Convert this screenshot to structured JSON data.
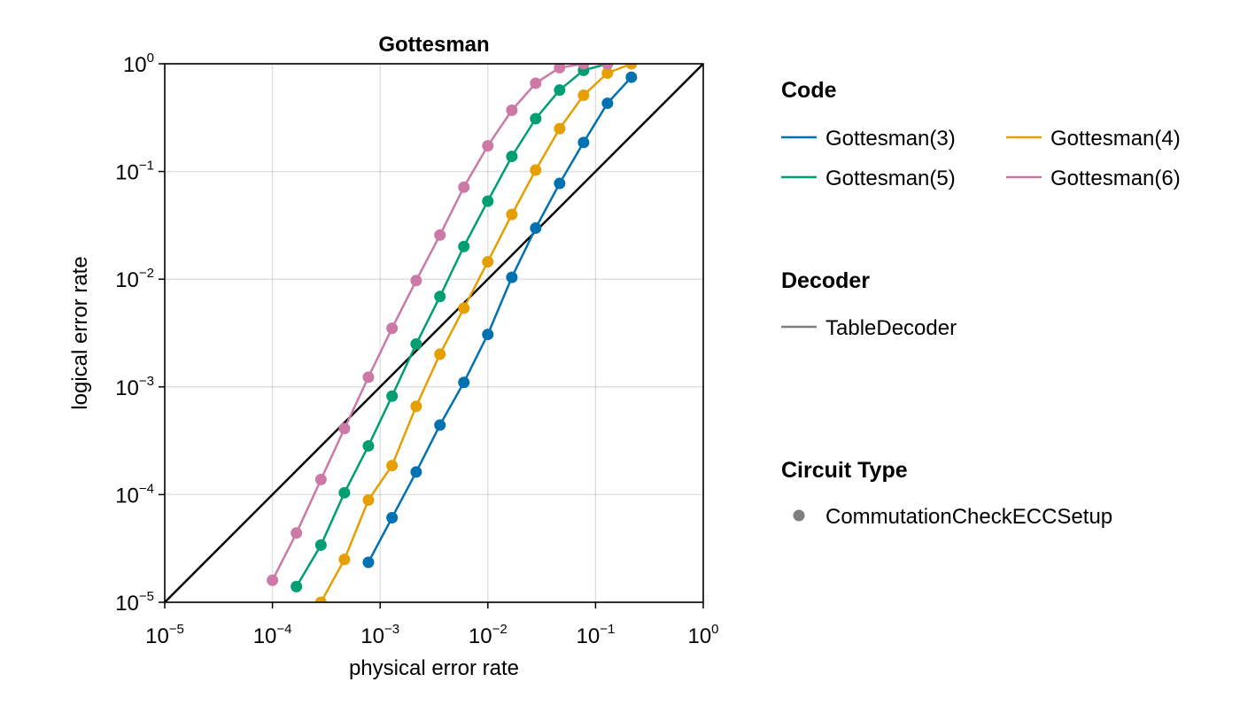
{
  "chart_data": {
    "type": "line",
    "title": "Gottesman",
    "xlabel": "physical error rate",
    "ylabel": "logical error rate",
    "x_scale": "log10",
    "y_scale": "log10",
    "xlim": [
      1e-05,
      1
    ],
    "ylim": [
      1e-05,
      1
    ],
    "grid": true,
    "x_ticks": [
      {
        "base": "10",
        "exp": "−5"
      },
      {
        "base": "10",
        "exp": "−4"
      },
      {
        "base": "10",
        "exp": "−3"
      },
      {
        "base": "10",
        "exp": "−2"
      },
      {
        "base": "10",
        "exp": "−1"
      },
      {
        "base": "10",
        "exp": "0"
      }
    ],
    "y_ticks": [
      {
        "base": "10",
        "exp": "−5"
      },
      {
        "base": "10",
        "exp": "−4"
      },
      {
        "base": "10",
        "exp": "−3"
      },
      {
        "base": "10",
        "exp": "−2"
      },
      {
        "base": "10",
        "exp": "−1"
      },
      {
        "base": "10",
        "exp": "0"
      }
    ],
    "reference_line": {
      "from": [
        1e-05,
        1e-05
      ],
      "to": [
        1,
        1
      ],
      "color": "#000000"
    },
    "series": [
      {
        "name": "Gottesman(3)",
        "color": "#0072b2",
        "x": [
          0.000778,
          0.00129,
          0.00216,
          0.00359,
          0.00599,
          0.00999,
          0.0167,
          0.0278,
          0.0464,
          0.0774,
          0.129,
          0.215
        ],
        "y": [
          2.35e-05,
          6.1e-05,
          0.000162,
          0.000442,
          0.0011,
          0.00307,
          0.0104,
          0.0298,
          0.0775,
          0.186,
          0.43,
          0.75
        ]
      },
      {
        "name": "Gottesman(4)",
        "color": "#e69f00",
        "x": [
          0.000282,
          0.000466,
          0.000778,
          0.00129,
          0.00216,
          0.00359,
          0.00599,
          0.00999,
          0.0167,
          0.0278,
          0.0464,
          0.0774,
          0.129,
          0.215
        ],
        "y": [
          1e-05,
          2.5e-05,
          8.9e-05,
          0.000186,
          0.00066,
          0.00201,
          0.00538,
          0.0145,
          0.0399,
          0.103,
          0.25,
          0.51,
          0.82,
          1.0
        ]
      },
      {
        "name": "Gottesman(5)",
        "color": "#009e73",
        "x": [
          0.000167,
          0.000282,
          0.000466,
          0.000778,
          0.00129,
          0.00216,
          0.00359,
          0.00599,
          0.00999,
          0.0167,
          0.0278,
          0.0464,
          0.0774,
          0.129
        ],
        "y": [
          1.4e-05,
          3.4e-05,
          0.000104,
          0.000283,
          0.00082,
          0.0025,
          0.0069,
          0.0201,
          0.053,
          0.138,
          0.309,
          0.57,
          0.87,
          1.0
        ]
      },
      {
        "name": "Gottesman(6)",
        "color": "#cc79a7",
        "x": [
          0.0001,
          0.000167,
          0.000282,
          0.000466,
          0.000778,
          0.00129,
          0.00216,
          0.00359,
          0.00599,
          0.00999,
          0.0167,
          0.0278,
          0.0464,
          0.0774,
          0.129
        ],
        "y": [
          1.6e-05,
          4.4e-05,
          0.000138,
          0.00041,
          0.00123,
          0.0035,
          0.0097,
          0.0257,
          0.0715,
          0.173,
          0.37,
          0.66,
          0.92,
          1.0,
          1.0
        ]
      }
    ],
    "legend": {
      "code_title": "Code",
      "decoder_title": "Decoder",
      "decoder_entry": "TableDecoder",
      "decoder_color": "#7f7f7f",
      "circuit_title": "Circuit Type",
      "circuit_entry": "CommutationCheckECCSetup",
      "circuit_color": "#7f7f7f"
    }
  }
}
